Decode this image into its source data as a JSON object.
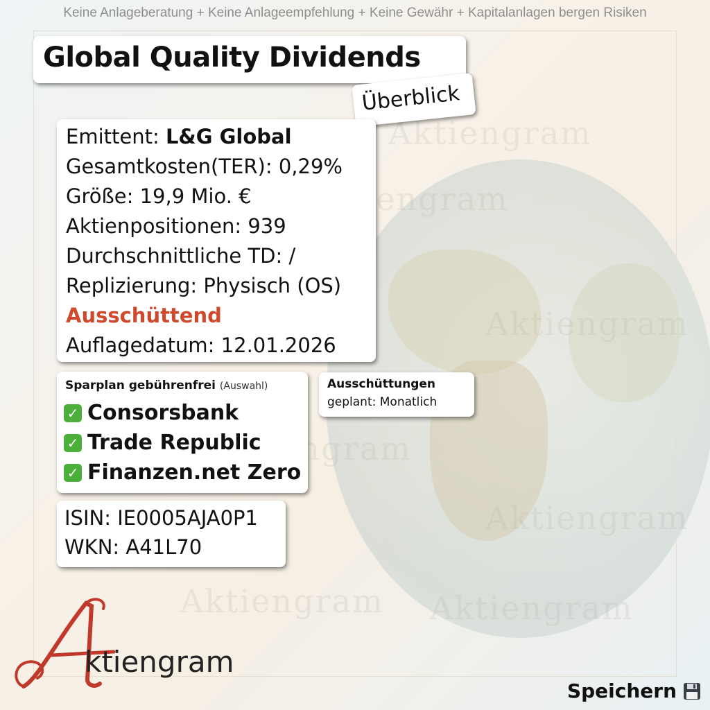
{
  "disclaimer": "Keine Anlageberatung + Keine Anlageempfehlung + Keine Gewähr + Kapitalanlagen bergen Risiken",
  "title": "Global Quality Dividends",
  "overview_tag": "Überblick",
  "info": {
    "issuer_label": "Emittent: ",
    "issuer_value": "L&G Global",
    "ter": "Gesamtkosten(TER): 0,29%",
    "size": "Größe: 19,9 Mio. €",
    "positions": "Aktienpositionen: 939",
    "avg_td": "Durchschnittliche TD: /",
    "replication": "Replizierung: Physisch (OS)",
    "distribution_type": "Ausschüttend",
    "launch_date": "Auflagedatum: 12.01.2026"
  },
  "savings_plan": {
    "heading": "Sparplan gebührenfrei",
    "note": "(Auswahl)",
    "brokers": [
      "Consorsbank",
      "Trade Republic",
      "Finanzen.net Zero"
    ]
  },
  "distributions": {
    "heading": "Ausschüttungen",
    "frequency": "geplant: Monatlich"
  },
  "identifiers": {
    "isin": "ISIN: IE0005AJA0P1",
    "wkn": "WKN: A41L70"
  },
  "brand": {
    "name": "ktiengram",
    "watermark": "Aktiengram",
    "accent_color": "#cf4a2c",
    "logo_color": "#c0392b"
  },
  "save": {
    "label": "Speichern",
    "icon": "floppy-disk-icon"
  }
}
